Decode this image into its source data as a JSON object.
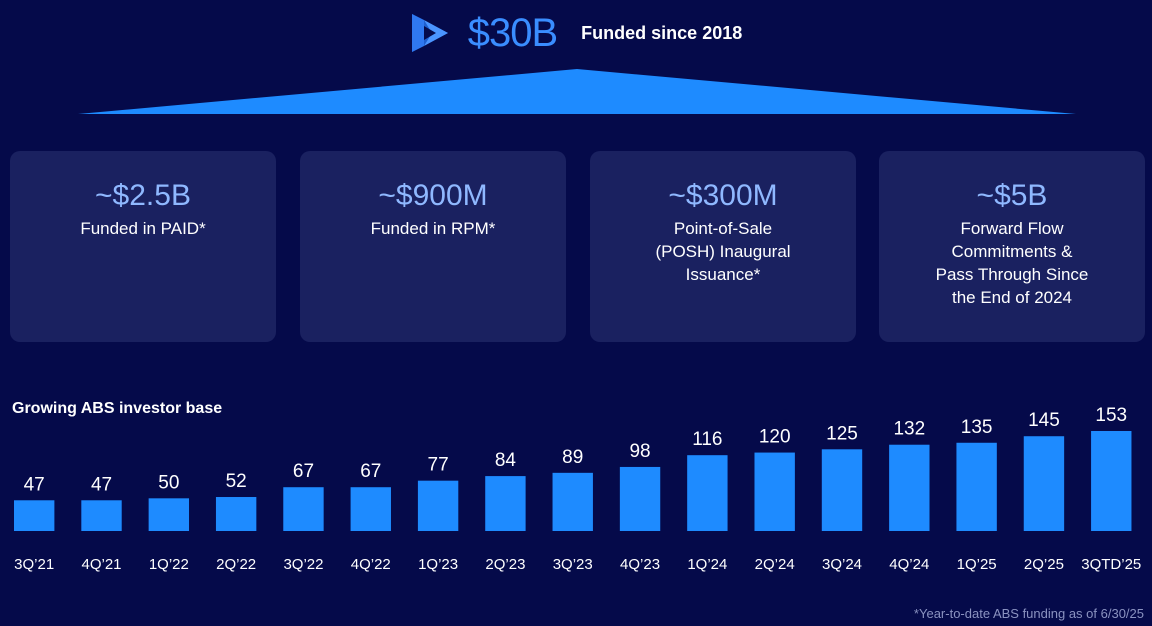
{
  "header": {
    "amount": "$30B",
    "subtitle": "Funded since 2018",
    "logo_icon": "play-triangle-logo-icon"
  },
  "colors": {
    "background": "#050a4a",
    "accent": "#3a8dff",
    "bar": "#1e8bff",
    "card": "#1a2160",
    "card_value": "#8fb8ff"
  },
  "cards": [
    {
      "value": "~$2.5B",
      "desc_lines": [
        "Funded in PAID*"
      ]
    },
    {
      "value": "~$900M",
      "desc_lines": [
        "Funded in RPM*"
      ]
    },
    {
      "value": "~$300M",
      "desc_lines": [
        "Point-of-Sale",
        "(POSH) Inaugural",
        "Issuance*"
      ]
    },
    {
      "value": "~$5B",
      "desc_lines": [
        "Forward Flow",
        "Commitments &",
        "Pass Through Since",
        "the End of 2024"
      ]
    }
  ],
  "chart_data": {
    "type": "bar",
    "title": "Growing ABS investor base",
    "categories": [
      "3Q’21",
      "4Q’21",
      "1Q’22",
      "2Q’22",
      "3Q’22",
      "4Q’22",
      "1Q’23",
      "2Q’23",
      "3Q’23",
      "4Q’23",
      "1Q’24",
      "2Q’24",
      "3Q’24",
      "4Q’24",
      "1Q’25",
      "2Q’25",
      "3QTD’25"
    ],
    "values": [
      47,
      47,
      50,
      52,
      67,
      67,
      77,
      84,
      89,
      98,
      116,
      120,
      125,
      132,
      135,
      145,
      153
    ],
    "grid": false,
    "legend": "none",
    "data_labels": true
  },
  "footnote": "*Year-to-date ABS funding as of 6/30/25"
}
